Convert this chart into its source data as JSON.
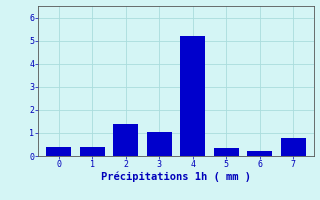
{
  "categories": [
    0,
    1,
    2,
    3,
    4,
    5,
    6,
    7
  ],
  "values": [
    0.4,
    0.4,
    1.4,
    1.05,
    5.2,
    0.35,
    0.2,
    0.8
  ],
  "bar_color": "#0000cc",
  "background_color": "#d4f5f5",
  "grid_color": "#aadddd",
  "xlabel": "Précipitations 1h ( mm )",
  "xlabel_color": "#0000bb",
  "tick_color": "#0000bb",
  "ylim": [
    0,
    6.5
  ],
  "yticks": [
    0,
    1,
    2,
    3,
    4,
    5,
    6
  ],
  "xlim": [
    -0.6,
    7.6
  ],
  "bar_width": 0.75,
  "figsize": [
    3.2,
    2.0
  ],
  "dpi": 100
}
